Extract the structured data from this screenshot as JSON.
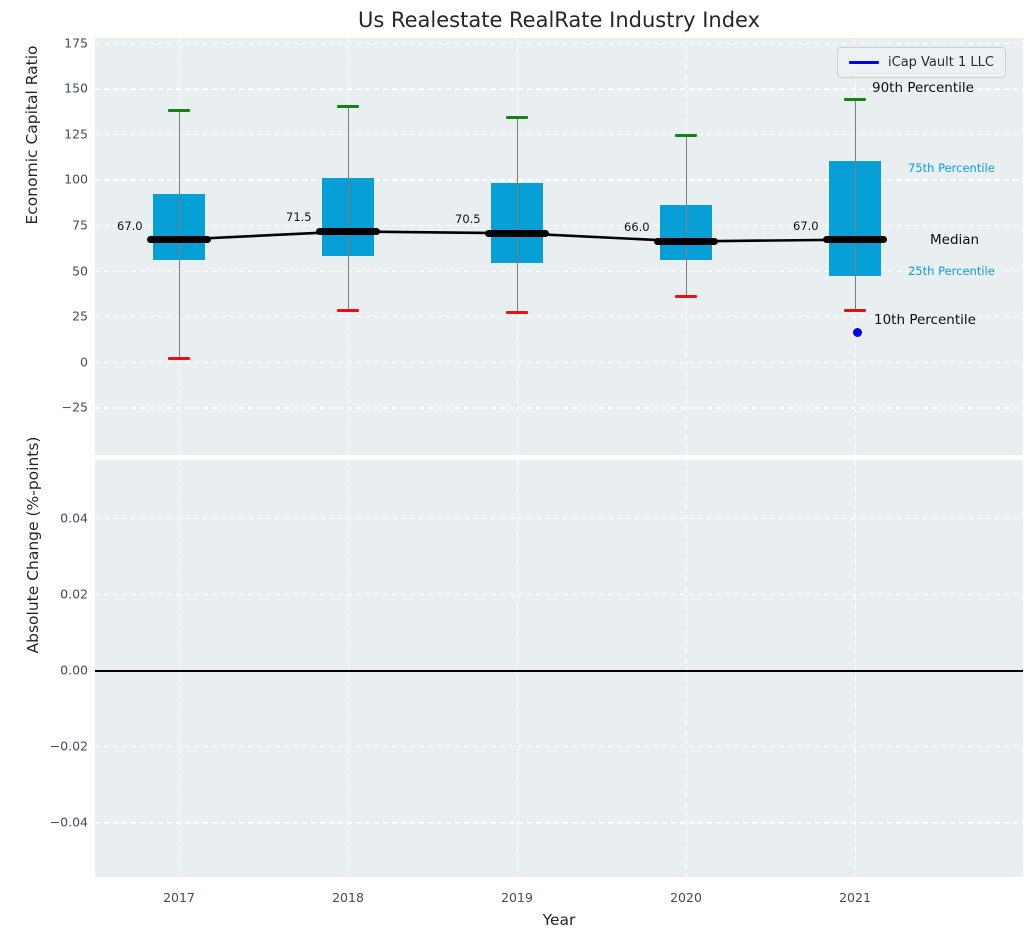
{
  "title": "Us Realestate RealRate Industry Index",
  "legend": {
    "series_label": "iCap Vault 1 LLC",
    "line_color": "#0000e6"
  },
  "percentile_labels": {
    "p90": "90th Percentile",
    "p75": "75th Percentile",
    "median": "Median",
    "p25": "25th Percentile",
    "p10": "10th Percentile"
  },
  "colors": {
    "plot_background": "#e9eef0",
    "box_fill": "#069fd6",
    "median_bar": "#000000",
    "p90_cap": "#128412",
    "p10_cap": "#e41414",
    "company_point": "#0000e6",
    "percentile_label_accent": "#089fd6",
    "tick_label": "#3f4d63",
    "zero_line": "#000000"
  },
  "chart_data": [
    {
      "type": "boxplot",
      "title": "Us Realestate RealRate Industry Index",
      "xlabel": "Year",
      "ylabel": "Economic Capital Ratio",
      "categories": [
        "2017",
        "2018",
        "2019",
        "2020",
        "2021"
      ],
      "ylim": [
        -52,
        178
      ],
      "yticks": [
        {
          "value": 175,
          "label": "175"
        },
        {
          "value": 150,
          "label": "150"
        },
        {
          "value": 125,
          "label": "125"
        },
        {
          "value": 100,
          "label": "100"
        },
        {
          "value": 75,
          "label": "75"
        },
        {
          "value": 50,
          "label": "50"
        },
        {
          "value": 25,
          "label": "25"
        },
        {
          "value": 0,
          "label": "0"
        },
        {
          "value": -25,
          "label": "−25"
        }
      ],
      "grid": true,
      "legend_position": "upper right",
      "boxes": [
        {
          "year": "2017",
          "p10": 2,
          "q1": 56,
          "median": 67,
          "q3": 92,
          "p90": 138,
          "median_label": "67.0"
        },
        {
          "year": "2018",
          "p10": 28,
          "q1": 58,
          "median": 71.5,
          "q3": 101,
          "p90": 140,
          "median_label": "71.5"
        },
        {
          "year": "2019",
          "p10": 27,
          "q1": 54,
          "median": 70.5,
          "q3": 98,
          "p90": 134,
          "median_label": "70.5"
        },
        {
          "year": "2020",
          "p10": 36,
          "q1": 56,
          "median": 66,
          "q3": 86,
          "p90": 124,
          "median_label": "66.0"
        },
        {
          "year": "2021",
          "p10": 28,
          "q1": 47,
          "median": 67,
          "q3": 110,
          "p90": 144,
          "median_label": "67.0"
        }
      ],
      "median_line_series": {
        "name": "Industry Median",
        "x": [
          "2017",
          "2018",
          "2019",
          "2020",
          "2021"
        ],
        "values": [
          67,
          71.5,
          70.5,
          66,
          67
        ]
      },
      "company_point": {
        "name": "iCap Vault 1 LLC",
        "year": "2021",
        "value": 16
      }
    },
    {
      "type": "line",
      "xlabel": "Year",
      "ylabel": "Absolute Change (%-points)",
      "categories": [
        "2017",
        "2018",
        "2019",
        "2020",
        "2021"
      ],
      "ylim": [
        -0.054,
        0.055
      ],
      "yticks": [
        {
          "value": 0.04,
          "label": "0.04"
        },
        {
          "value": 0.02,
          "label": "0.02"
        },
        {
          "value": 0,
          "label": "0.00"
        },
        {
          "value": -0.02,
          "label": "−0.02"
        },
        {
          "value": -0.04,
          "label": "−0.04"
        }
      ],
      "grid": true,
      "zero_line": 0,
      "values": []
    }
  ]
}
